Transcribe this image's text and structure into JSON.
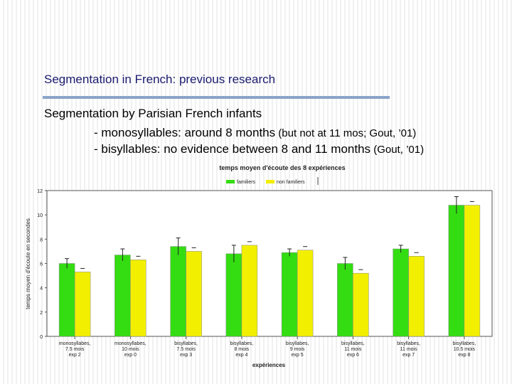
{
  "slide": {
    "title": "Segmentation in French: previous research",
    "heading": "Segmentation by Parisian French infants",
    "bullet1": {
      "main": "- monosyllables: around 8 months",
      "note": " (but not at 11 mos; Gout, ’01)"
    },
    "bullet2": {
      "main": "- bisyllables: no evidence between 8 and 11 months",
      "note": " (Gout, ’01)"
    }
  },
  "colors": {
    "familiers": "#33dd11",
    "non_familiers": "#f2ef00",
    "title_text": "#1a1a6e",
    "title_rule": "#8aa4c8"
  },
  "chart_data": {
    "type": "bar",
    "title": "temps moyen d'écoute des 8 expériences",
    "xlabel": "expériences",
    "ylabel": "temps moyen d'écoute en secondes",
    "ylim": [
      0,
      12
    ],
    "yticks": [
      0,
      2,
      4,
      6,
      8,
      10,
      12
    ],
    "legend": [
      "familiers",
      "non familiers"
    ],
    "legend_position": "top-center",
    "categories": [
      [
        "monosyllabes,",
        "7.5 mois",
        "exp 2"
      ],
      [
        "monosyllabes,",
        "10 mois",
        "exp 0"
      ],
      [
        "bisyllabes,",
        "7.5 mois",
        "exp 3"
      ],
      [
        "bisyllabes,",
        "8 mois",
        "exp 4"
      ],
      [
        "bisyllabes,",
        "9 mois",
        "exp 5"
      ],
      [
        "bisyllabes,",
        "11 mois",
        "exp 6"
      ],
      [
        "bisyllabes,",
        "11 mois",
        "exp 7"
      ],
      [
        "bisyllabes,",
        "10.5 mois",
        "exp 8"
      ]
    ],
    "series": [
      {
        "name": "familiers",
        "values": [
          6.0,
          6.7,
          7.4,
          6.8,
          6.9,
          6.0,
          7.2,
          10.8
        ],
        "errors": [
          0.4,
          0.5,
          0.7,
          0.7,
          0.3,
          0.5,
          0.3,
          0.7
        ]
      },
      {
        "name": "non familiers",
        "values": [
          5.3,
          6.3,
          7.0,
          7.5,
          7.1,
          5.2,
          6.6,
          10.8
        ]
      }
    ]
  }
}
